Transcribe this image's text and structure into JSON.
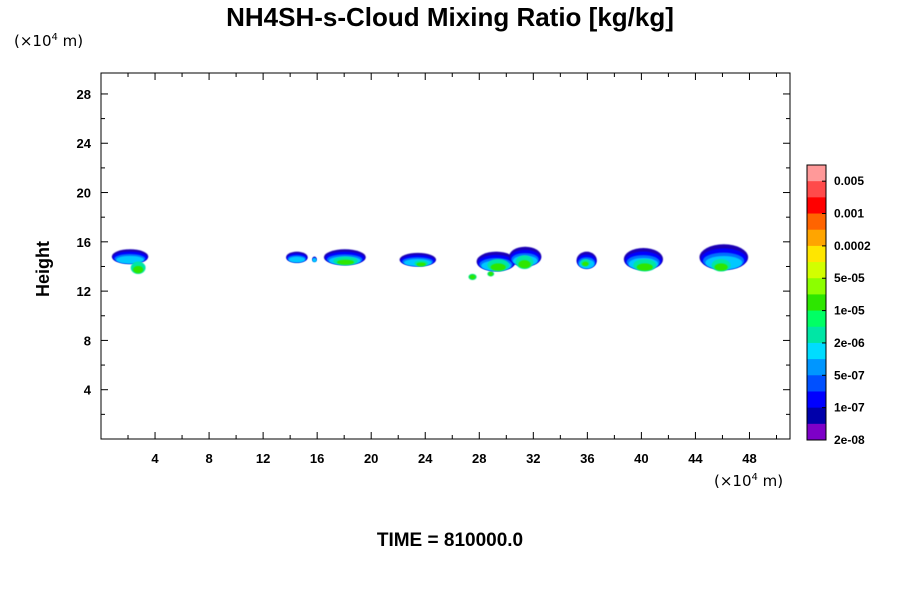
{
  "chart_data": {
    "type": "heatmap",
    "title": "NH4SH-s-Cloud Mixing Ratio [kg/kg]",
    "ylabel": "Height",
    "xlabel": "",
    "x_unit": {
      "prefix": "(×10",
      "exp": "4",
      "suffix": " m)"
    },
    "y_unit": {
      "prefix": "(×10",
      "exp": "4",
      "suffix": " m)"
    },
    "footer": "TIME = 810000.0",
    "xlim": [
      0,
      51
    ],
    "ylim": [
      0,
      29.7
    ],
    "x_ticks": [
      4,
      8,
      12,
      16,
      20,
      24,
      28,
      32,
      36,
      40,
      44,
      48
    ],
    "y_ticks": [
      4,
      8,
      12,
      16,
      20,
      24,
      28
    ],
    "colorbar": {
      "labels": [
        "0.005",
        "0.001",
        "0.0002",
        "5e-05",
        "1e-05",
        "2e-06",
        "5e-07",
        "1e-07",
        "2e-08"
      ],
      "colors": [
        "#ff9999",
        "#ff4a4a",
        "#ff0000",
        "#ff6400",
        "#ffa500",
        "#ffe600",
        "#d2ff00",
        "#8cff00",
        "#2de600",
        "#00ff64",
        "#00e6a5",
        "#00dcff",
        "#0096ff",
        "#0050ff",
        "#0000ff",
        "#0000aa",
        "#7d00c8"
      ]
    },
    "clouds": [
      {
        "x": [
          0.8,
          3.5
        ],
        "y": [
          14.2,
          15.4
        ],
        "core": [
          2.2,
          3.3
        ],
        "core_y": [
          13.4,
          14.4
        ]
      },
      {
        "x": [
          13.7,
          15.3
        ],
        "y": [
          14.3,
          15.2
        ],
        "core": null
      },
      {
        "x": [
          15.7,
          15.9
        ],
        "y": [
          14.4,
          14.8
        ],
        "core": null
      },
      {
        "x": [
          16.5,
          19.6
        ],
        "y": [
          14.1,
          15.4
        ],
        "core": [
          17.2,
          19.0
        ],
        "core_y": [
          14.1,
          14.8
        ]
      },
      {
        "x": [
          22.1,
          24.8
        ],
        "y": [
          14.0,
          15.1
        ],
        "core": [
          23.2,
          24.2
        ],
        "core_y": [
          14.0,
          14.5
        ]
      },
      {
        "x": [
          27.2,
          27.8
        ],
        "y": [
          12.9,
          13.4
        ],
        "core": [
          27.2,
          27.8
        ],
        "core_y": [
          12.9,
          13.4
        ],
        "green": true
      },
      {
        "x": [
          28.6,
          29.1
        ],
        "y": [
          13.2,
          13.6
        ],
        "core": [
          28.6,
          29.1
        ],
        "core_y": [
          13.2,
          13.6
        ],
        "green": true
      },
      {
        "x": [
          27.8,
          30.7
        ],
        "y": [
          13.6,
          15.2
        ],
        "core": [
          28.6,
          30.2
        ],
        "core_y": [
          13.6,
          14.6
        ]
      },
      {
        "x": [
          30.2,
          32.6
        ],
        "y": [
          14.0,
          15.6
        ],
        "core": [
          30.7,
          32.0
        ],
        "core_y": [
          13.8,
          14.9
        ]
      },
      {
        "x": [
          35.2,
          36.7
        ],
        "y": [
          13.8,
          15.2
        ],
        "core": [
          35.5,
          36.2
        ],
        "core_y": [
          14.0,
          14.6
        ]
      },
      {
        "x": [
          38.7,
          41.6
        ],
        "y": [
          13.7,
          15.5
        ],
        "core": [
          39.4,
          41.1
        ],
        "core_y": [
          13.6,
          14.6
        ]
      },
      {
        "x": [
          44.3,
          47.9
        ],
        "y": [
          13.7,
          15.8
        ],
        "core": [
          45.2,
          46.6
        ],
        "core_y": [
          13.6,
          14.6
        ]
      }
    ]
  }
}
